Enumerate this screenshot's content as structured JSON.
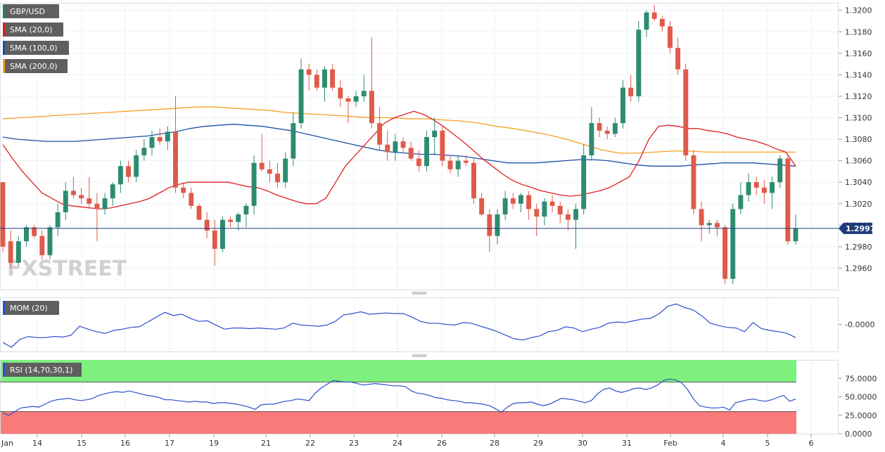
{
  "chart_data": {
    "type": "candlestick",
    "symbol": "GBP/USD",
    "watermark": "FXSTREET",
    "last_price": "1.2997",
    "last_price_value": 1.2997,
    "x_ticks": [
      "14",
      "15",
      "16",
      "17",
      "19",
      "21",
      "22",
      "23",
      "24",
      "26",
      "28",
      "29",
      "30",
      "31",
      "Feb",
      "4",
      "5",
      "6"
    ],
    "x_tick_positions": [
      1,
      4.5,
      8,
      11.5,
      15,
      18.5,
      22,
      25.5,
      29,
      32.5,
      36,
      39.5,
      43,
      46.5,
      50,
      53.5,
      57,
      60.5
    ],
    "price_panel": {
      "y_ticks": [
        "1.2960",
        "1.2980",
        "1.3000",
        "1.3020",
        "1.3040",
        "1.3060",
        "1.3080",
        "1.3100",
        "1.3120",
        "1.3140",
        "1.3160",
        "1.3180",
        "1.3200"
      ],
      "ylim": [
        1.294,
        1.3207
      ],
      "legend": [
        {
          "label": "GBP/USD",
          "color": "#2e7d6b"
        },
        {
          "label": "SMA (20,0)",
          "color": "#e02020"
        },
        {
          "label": "SMA (100,0)",
          "color": "#1e4fa8"
        },
        {
          "label": "SMA (200,0)",
          "color": "#f4a020"
        }
      ],
      "candles": [
        [
          1.304,
          1.304,
          1.2975,
          1.298
        ],
        [
          1.2985,
          1.2995,
          1.296,
          1.2965
        ],
        [
          1.2965,
          1.299,
          1.2962,
          1.2985
        ],
        [
          1.2985,
          1.3,
          1.298,
          1.2998
        ],
        [
          1.2998,
          1.3,
          1.2988,
          1.299
        ],
        [
          1.299,
          1.2995,
          1.2968,
          1.2972
        ],
        [
          1.2972,
          1.3,
          1.2968,
          1.2998
        ],
        [
          1.2998,
          1.302,
          1.299,
          1.3012
        ],
        [
          1.3012,
          1.304,
          1.3005,
          1.3032
        ],
        [
          1.3032,
          1.3045,
          1.3025,
          1.3028
        ],
        [
          1.3028,
          1.3035,
          1.302,
          1.3025
        ],
        [
          1.3025,
          1.3045,
          1.3015,
          1.302
        ],
        [
          1.302,
          1.303,
          1.2985,
          1.3015
        ],
        [
          1.3015,
          1.303,
          1.301,
          1.3025
        ],
        [
          1.3025,
          1.304,
          1.3018,
          1.3038
        ],
        [
          1.3038,
          1.306,
          1.303,
          1.3055
        ],
        [
          1.3055,
          1.306,
          1.304,
          1.3045
        ],
        [
          1.3045,
          1.307,
          1.304,
          1.3065
        ],
        [
          1.3065,
          1.308,
          1.306,
          1.3072
        ],
        [
          1.3072,
          1.3088,
          1.3065,
          1.3082
        ],
        [
          1.3082,
          1.309,
          1.3075,
          1.3078
        ],
        [
          1.3078,
          1.3092,
          1.307,
          1.3087
        ],
        [
          1.3087,
          1.312,
          1.303,
          1.3035
        ],
        [
          1.3035,
          1.304,
          1.3025,
          1.303
        ],
        [
          1.303,
          1.3035,
          1.3015,
          1.3018
        ],
        [
          1.3018,
          1.302,
          1.3005,
          1.3005
        ],
        [
          1.3005,
          1.3012,
          1.2988,
          1.2995
        ],
        [
          1.2995,
          1.3005,
          1.2962,
          1.2978
        ],
        [
          1.2978,
          1.3008,
          1.2975,
          1.3005
        ],
        [
          1.3005,
          1.3008,
          1.2998,
          1.3003
        ],
        [
          1.3003,
          1.3012,
          1.2995,
          1.301
        ],
        [
          1.301,
          1.302,
          1.2998,
          1.3018
        ],
        [
          1.3018,
          1.3065,
          1.301,
          1.3058
        ],
        [
          1.3058,
          1.3085,
          1.305,
          1.3052
        ],
        [
          1.3052,
          1.306,
          1.304,
          1.3048
        ],
        [
          1.3048,
          1.3058,
          1.3035,
          1.304
        ],
        [
          1.304,
          1.3068,
          1.3035,
          1.3062
        ],
        [
          1.3062,
          1.3105,
          1.3055,
          1.3095
        ],
        [
          1.3095,
          1.3155,
          1.309,
          1.3145
        ],
        [
          1.3145,
          1.315,
          1.3125,
          1.314
        ],
        [
          1.314,
          1.3145,
          1.3125,
          1.3128
        ],
        [
          1.3128,
          1.3148,
          1.3115,
          1.3145
        ],
        [
          1.3145,
          1.315,
          1.3125,
          1.3128
        ],
        [
          1.3128,
          1.3135,
          1.311,
          1.3118
        ],
        [
          1.3118,
          1.312,
          1.3095,
          1.3115
        ],
        [
          1.3115,
          1.3125,
          1.311,
          1.312
        ],
        [
          1.312,
          1.314,
          1.3115,
          1.3125
        ],
        [
          1.3125,
          1.3175,
          1.309,
          1.3095
        ]
      ],
      "candles_part2": [
        [
          1.3095,
          1.311,
          1.307,
          1.3075
        ],
        [
          1.3075,
          1.3088,
          1.306,
          1.3068
        ],
        [
          1.3068,
          1.3085,
          1.306,
          1.3078
        ],
        [
          1.3078,
          1.3082,
          1.3068,
          1.3072
        ],
        [
          1.3072,
          1.3078,
          1.306,
          1.3062
        ],
        [
          1.3062,
          1.307,
          1.305,
          1.3055
        ],
        [
          1.3055,
          1.3088,
          1.305,
          1.3082
        ],
        [
          1.3082,
          1.31,
          1.3065,
          1.3088
        ],
        [
          1.3088,
          1.3092,
          1.3055,
          1.306
        ],
        [
          1.306,
          1.3065,
          1.3048,
          1.3052
        ],
        [
          1.3052,
          1.3065,
          1.3045,
          1.306
        ],
        [
          1.306,
          1.3065,
          1.3055,
          1.3058
        ],
        [
          1.3058,
          1.3062,
          1.302,
          1.3025
        ],
        [
          1.3025,
          1.303,
          1.3008,
          1.301
        ],
        [
          1.301,
          1.3015,
          1.2975,
          1.299
        ],
        [
          1.299,
          1.3015,
          1.2982,
          1.301
        ],
        [
          1.301,
          1.3032,
          1.3005,
          1.3025
        ],
        [
          1.3025,
          1.303,
          1.3015,
          1.302
        ],
        [
          1.302,
          1.303,
          1.3012,
          1.3028
        ],
        [
          1.3028,
          1.3032,
          1.3005,
          1.3015
        ],
        [
          1.3015,
          1.302,
          1.299,
          1.3008
        ],
        [
          1.3008,
          1.3025,
          1.3,
          1.3022
        ],
        [
          1.3022,
          1.3028,
          1.3012,
          1.3018
        ],
        [
          1.3018,
          1.3022,
          1.3002,
          1.301
        ],
        [
          1.301,
          1.3015,
          1.2995,
          1.3005
        ],
        [
          1.3005,
          1.302,
          1.2978,
          1.3015
        ],
        [
          1.3015,
          1.3075,
          1.301,
          1.3065
        ],
        [
          1.3065,
          1.311,
          1.306,
          1.3095
        ],
        [
          1.3095,
          1.31,
          1.3082,
          1.3088
        ],
        [
          1.3088,
          1.3092,
          1.308,
          1.3085
        ],
        [
          1.3085,
          1.31,
          1.3082,
          1.3095
        ],
        [
          1.3095,
          1.3135,
          1.309,
          1.3128
        ],
        [
          1.3128,
          1.314,
          1.3115,
          1.312
        ],
        [
          1.312,
          1.319,
          1.3115,
          1.3182
        ],
        [
          1.3182,
          1.32,
          1.3175,
          1.3198
        ],
        [
          1.3198,
          1.3205,
          1.319,
          1.3192
        ],
        [
          1.3192,
          1.3195,
          1.318,
          1.3185
        ],
        [
          1.3185,
          1.319,
          1.316,
          1.3165
        ],
        [
          1.3165,
          1.3175,
          1.314,
          1.3145
        ],
        [
          1.3145,
          1.315,
          1.306,
          1.3065
        ],
        [
          1.3065,
          1.307,
          1.301,
          1.3015
        ],
        [
          1.3015,
          1.3022,
          1.2985,
          1.3
        ],
        [
          1.3,
          1.3005,
          1.2992,
          1.3002
        ],
        [
          1.3002,
          1.3005,
          1.299,
          1.2998
        ],
        [
          1.2998,
          1.3,
          1.2945,
          1.295
        ],
        [
          1.295,
          1.302,
          1.2945,
          1.3015
        ],
        [
          1.3015,
          1.304,
          1.301,
          1.3028
        ],
        [
          1.3028,
          1.3048,
          1.3022,
          1.304
        ],
        [
          1.304,
          1.3045,
          1.3028,
          1.3035
        ],
        [
          1.3035,
          1.3042,
          1.302,
          1.303
        ],
        [
          1.303,
          1.3045,
          1.3015,
          1.304
        ],
        [
          1.304,
          1.3065,
          1.3035,
          1.3062
        ],
        [
          1.3062,
          1.3065,
          1.2982,
          1.2985
        ],
        [
          1.2985,
          1.301,
          1.2982,
          1.2997
        ]
      ],
      "sma20": [
        1.3075,
        1.3062,
        1.305,
        1.304,
        1.303,
        1.3025,
        1.302,
        1.3018,
        1.3017,
        1.3016,
        1.3015,
        1.3016,
        1.3018,
        1.302,
        1.3022,
        1.3025,
        1.303,
        1.3035,
        1.3038,
        1.304,
        1.304,
        1.304,
        1.304,
        1.304,
        1.3038,
        1.3036,
        1.3035,
        1.3032,
        1.3028,
        1.3025,
        1.3022,
        1.302,
        1.302,
        1.3025,
        1.304,
        1.3055,
        1.3065,
        1.3075,
        1.3085,
        1.3095,
        1.31,
        1.3103,
        1.3106,
        1.3103,
        1.3098,
        1.3092,
        1.3085,
        1.3078,
        1.307,
        1.3062,
        1.3055,
        1.3048,
        1.3042,
        1.3038,
        1.3035,
        1.3032,
        1.303,
        1.3028,
        1.3027,
        1.3028,
        1.303,
        1.3032,
        1.3035,
        1.304,
        1.3045,
        1.306,
        1.308,
        1.3092,
        1.3093,
        1.3092,
        1.309,
        1.309,
        1.3088,
        1.3087,
        1.3085,
        1.3082,
        1.308,
        1.3078,
        1.3075,
        1.3071,
        1.3068,
        1.3055
      ],
      "sma100": [
        1.3082,
        1.308,
        1.3079,
        1.3078,
        1.3078,
        1.3078,
        1.3079,
        1.308,
        1.3081,
        1.3082,
        1.3083,
        1.3085,
        1.3087,
        1.309,
        1.3092,
        1.3093,
        1.3094,
        1.3093,
        1.3092,
        1.309,
        1.3088,
        1.3085,
        1.3082,
        1.3079,
        1.3076,
        1.3073,
        1.307,
        1.3068,
        1.3067,
        1.3066,
        1.3066,
        1.3065,
        1.3064,
        1.3062,
        1.306,
        1.3058,
        1.3058,
        1.3058,
        1.3059,
        1.306,
        1.3061,
        1.3061,
        1.306,
        1.3058,
        1.3056,
        1.3055,
        1.3055,
        1.3055,
        1.3056,
        1.3057,
        1.3058,
        1.3058,
        1.3058,
        1.3057,
        1.3056,
        1.3055
      ],
      "sma200": [
        1.3099,
        1.31,
        1.3101,
        1.3102,
        1.3103,
        1.3104,
        1.3105,
        1.3106,
        1.3107,
        1.3108,
        1.3109,
        1.311,
        1.311,
        1.3109,
        1.3108,
        1.3107,
        1.3105,
        1.3104,
        1.3103,
        1.3102,
        1.3101,
        1.31,
        1.31,
        1.3099,
        1.3099,
        1.3098,
        1.3097,
        1.3095,
        1.3092,
        1.309,
        1.3087,
        1.3084,
        1.308,
        1.3075,
        1.307,
        1.3067,
        1.3067,
        1.3068,
        1.3069,
        1.3069,
        1.3068,
        1.3068,
        1.3068,
        1.3068,
        1.3068,
        1.3068
      ]
    },
    "mom_panel": {
      "legend": "MOM (20)",
      "y_ticks": [
        "-0.0000"
      ],
      "values": [
        -0.003,
        -0.0038,
        -0.0025,
        -0.002,
        -0.0022,
        -0.0022,
        -0.002,
        -0.0021,
        -0.0018,
        -0.0003,
        -0.0008,
        -0.0012,
        -0.0015,
        -0.001,
        -0.0008,
        -0.0005,
        -0.0004,
        0.0004,
        0.0012,
        0.002,
        0.0015,
        0.0017,
        0.001,
        0.0005,
        0.0006,
        -0.0001,
        -0.0008,
        -0.0006,
        -0.0006,
        -0.0007,
        -0.0006,
        -0.0007,
        -0.0008,
        -0.0006,
        0.0002,
        -0.0001,
        -0.0002,
        -0.0003,
        -0.0001,
        0.0005,
        0.0016,
        0.0018,
        0.0021,
        0.0017,
        0.0018,
        0.0019,
        0.0018,
        0.0018,
        0.0012,
        0.0005,
        0.0002,
        0.0002,
        0.0,
        -0.0001,
        0.0003,
        0.0002,
        -0.0003,
        -0.0007,
        -0.0012,
        -0.0018,
        -0.0024,
        -0.0026,
        -0.0022,
        -0.0019,
        -0.0012,
        -0.001,
        -0.0004,
        -0.0006,
        -0.0012,
        -0.0008,
        -0.0005,
        0.0002,
        0.0004,
        0.0003,
        0.0006,
        0.0009,
        0.001,
        0.0018,
        0.003,
        0.0034,
        0.0028,
        0.0024,
        0.0014,
        0.0002,
        -0.0002,
        -0.0005,
        -0.0006,
        -0.0012,
        0.0003,
        -0.0007,
        -0.001,
        -0.0012,
        -0.0015,
        -0.0022
      ],
      "ylim": [
        -0.0045,
        0.0045
      ]
    },
    "rsi_panel": {
      "legend": "RSI (14,70,30,1)",
      "y_ticks": [
        "75.0000",
        "50.0000",
        "25.0000",
        "0.0000"
      ],
      "overbought": 70,
      "oversold": 30,
      "ylim": [
        0,
        100
      ],
      "values": [
        28,
        25,
        30,
        35,
        36,
        37,
        36,
        40,
        44,
        46,
        47,
        48,
        46,
        45,
        46,
        48,
        52,
        54,
        56,
        57,
        56,
        58,
        56,
        54,
        52,
        51,
        49,
        46,
        46,
        45,
        44,
        43,
        44,
        43,
        43,
        41,
        42,
        42,
        41,
        40,
        38,
        36,
        33,
        39,
        40,
        40,
        42,
        44,
        45,
        47,
        46,
        45,
        55,
        62,
        67,
        72,
        71,
        70,
        70,
        68,
        66,
        67,
        68,
        67,
        66,
        65,
        65,
        64,
        58,
        55,
        54,
        52,
        49,
        48,
        46,
        45,
        44,
        42,
        42,
        41,
        40,
        38,
        34,
        29,
        36,
        41,
        42,
        42,
        43,
        40,
        38,
        40,
        44,
        48,
        47,
        46,
        44,
        42,
        45,
        54,
        60,
        62,
        58,
        56,
        58,
        61,
        62,
        60,
        62,
        66,
        72,
        74,
        73,
        69,
        60,
        47,
        38,
        36,
        35,
        35,
        36,
        32,
        42,
        44,
        46,
        47,
        45,
        44,
        46,
        49,
        52,
        44,
        47
      ]
    }
  }
}
